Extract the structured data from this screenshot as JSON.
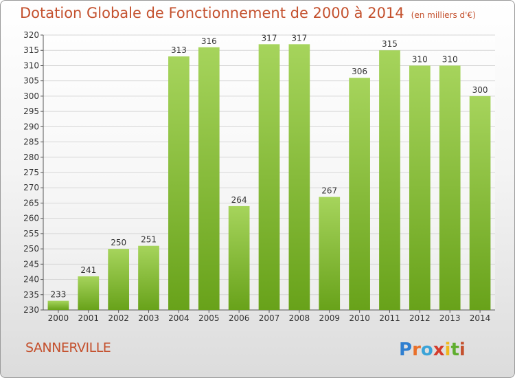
{
  "header": {
    "title": "Dotation Globale de Fonctionnement de 2000 à 2014",
    "unit": "(en milliers d'€)"
  },
  "footer": {
    "commune": "SANNERVILLE",
    "brand": "Proxiti"
  },
  "chart_data": {
    "type": "bar",
    "title": "Dotation Globale de Fonctionnement de 2000 à 2014",
    "subtitle": "(en milliers d'€)",
    "categories": [
      "2000",
      "2001",
      "2002",
      "2003",
      "2004",
      "2005",
      "2006",
      "2007",
      "2008",
      "2009",
      "2010",
      "2011",
      "2012",
      "2013",
      "2014"
    ],
    "values": [
      233,
      241,
      250,
      251,
      313,
      316,
      264,
      317,
      317,
      267,
      306,
      315,
      310,
      310,
      300
    ],
    "ylim": [
      230,
      320
    ],
    "yticks": [
      230,
      235,
      240,
      245,
      250,
      255,
      260,
      265,
      270,
      275,
      280,
      285,
      290,
      295,
      300,
      305,
      310,
      315,
      320
    ],
    "grid": true,
    "bar_color": "#7fba28",
    "bar_color_light": "#a6d45c"
  }
}
